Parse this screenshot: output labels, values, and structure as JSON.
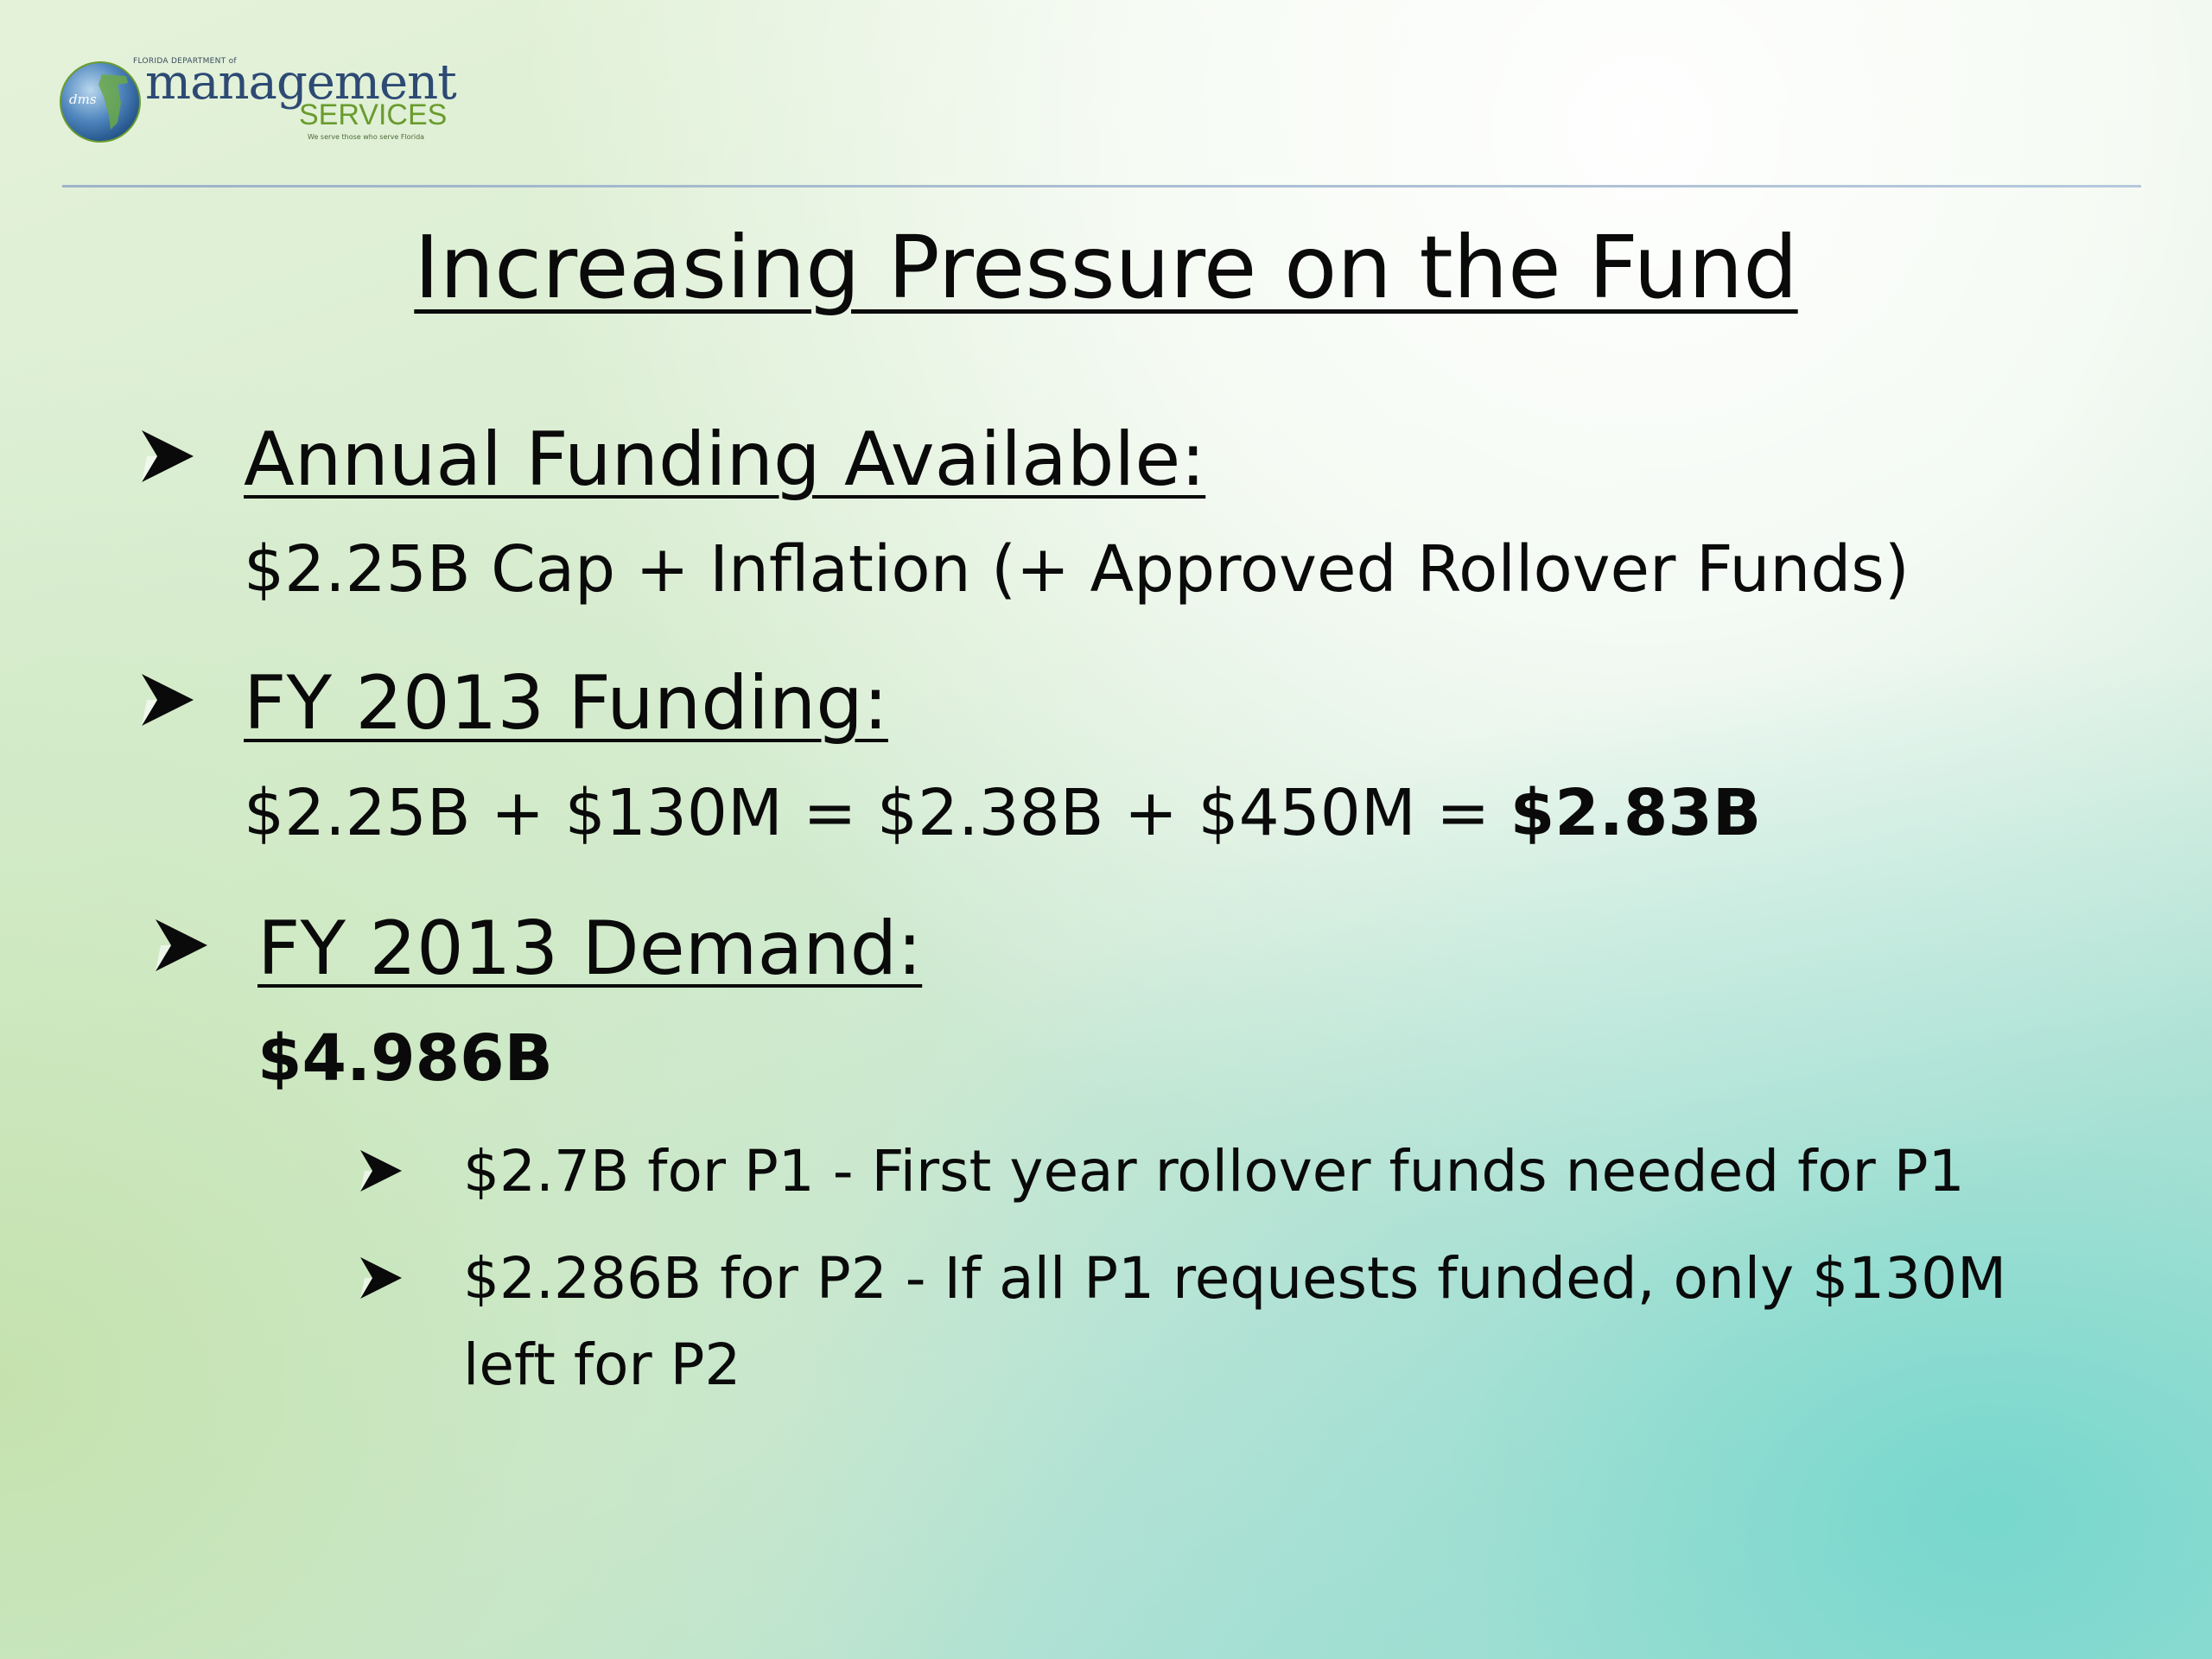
{
  "logo": {
    "globe_text": "dms",
    "department": "FLORIDA DEPARTMENT of",
    "management": "management",
    "services": "SERVICES",
    "tagline": "We serve those who serve Florida"
  },
  "slide": {
    "title": "Increasing Pressure on the Fund",
    "bullets": [
      {
        "heading": "Annual Funding Available:",
        "body": "$2.25B Cap + Inflation (+ Approved Rollover Funds)"
      },
      {
        "heading": "FY 2013 Funding:",
        "body_prefix": "$2.25B + $130M = $2.38B + $450M = ",
        "body_emphasis": "$2.83B"
      },
      {
        "heading": "FY 2013 Demand:",
        "body_emphasis": "$4.986B",
        "sub_bullets": [
          "$2.7B for P1 - First year rollover funds needed for P1",
          "$2.286B for P2 - If all P1 requests funded, only $130M",
          "left for P2"
        ]
      }
    ]
  },
  "colors": {
    "logo_navy": "#2d4a74",
    "logo_green": "#6a9b2e",
    "divider": "#9eb3c9",
    "text": "#0a0a0a"
  },
  "icons": {
    "bullet": "arrowhead-bullet-icon",
    "logo": "florida-globe-icon"
  }
}
